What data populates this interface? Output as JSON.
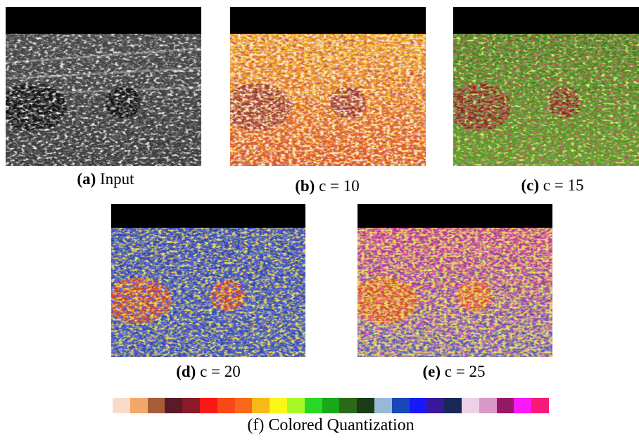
{
  "panels": [
    {
      "label": "(a)",
      "caption": "Input"
    },
    {
      "label": "(b)",
      "caption": "c = 10"
    },
    {
      "label": "(c)",
      "caption": "c = 15"
    },
    {
      "label": "(d)",
      "caption": "c = 20"
    },
    {
      "label": "(e)",
      "caption": "c = 25"
    }
  ],
  "legend": {
    "caption": "(f) Colored Quantization"
  }
}
